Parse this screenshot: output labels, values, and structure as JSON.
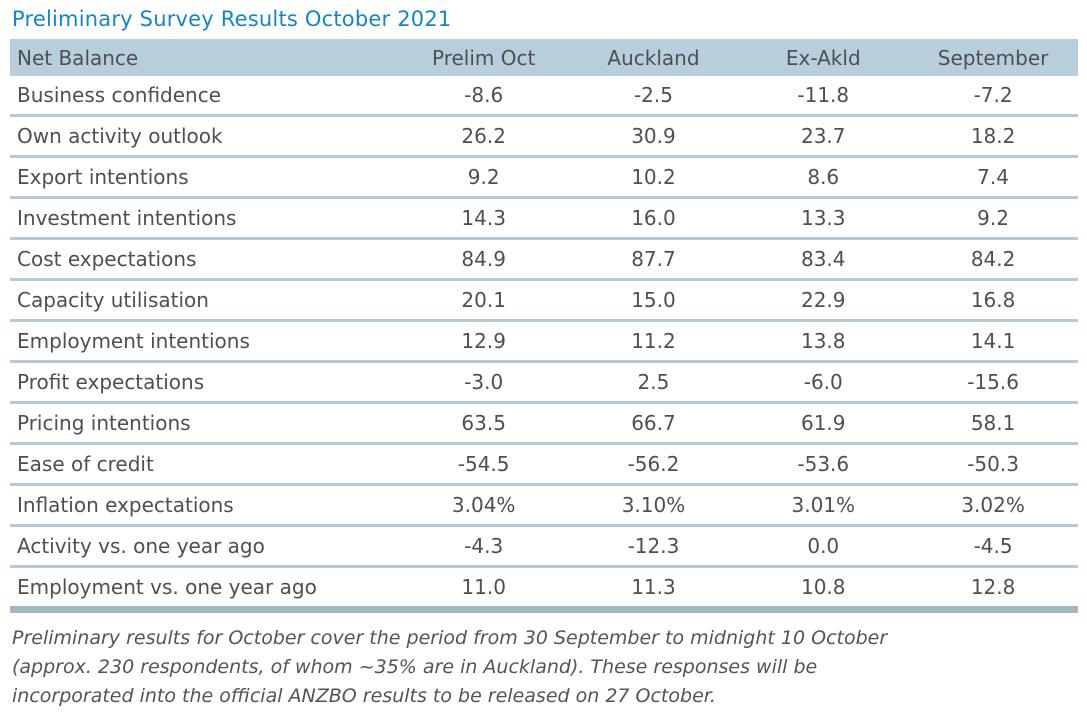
{
  "chart_data": {
    "type": "table",
    "title": "Preliminary Survey Results October 2021",
    "columns": [
      "Net Balance",
      "Prelim Oct",
      "Auckland",
      "Ex-Akld",
      "September"
    ],
    "rows": [
      [
        "Business confidence",
        "-8.6",
        "-2.5",
        "-11.8",
        "-7.2"
      ],
      [
        "Own activity outlook",
        "26.2",
        "30.9",
        "23.7",
        "18.2"
      ],
      [
        "Export intentions",
        "9.2",
        "10.2",
        "8.6",
        "7.4"
      ],
      [
        "Investment intentions",
        "14.3",
        "16.0",
        "13.3",
        "9.2"
      ],
      [
        "Cost expectations",
        "84.9",
        "87.7",
        "83.4",
        "84.2"
      ],
      [
        "Capacity utilisation",
        "20.1",
        "15.0",
        "22.9",
        "16.8"
      ],
      [
        "Employment intentions",
        "12.9",
        "11.2",
        "13.8",
        "14.1"
      ],
      [
        "Profit expectations",
        "-3.0",
        "2.5",
        "-6.0",
        "-15.6"
      ],
      [
        "Pricing intentions",
        "63.5",
        "66.7",
        "61.9",
        "58.1"
      ],
      [
        "Ease of credit",
        "-54.5",
        "-56.2",
        "-53.6",
        "-50.3"
      ],
      [
        "Inflation expectations",
        "3.04%",
        "3.10%",
        "3.01%",
        "3.02%"
      ],
      [
        "Activity vs. one year ago",
        "-4.3",
        "-12.3",
        "0.0",
        "-4.5"
      ],
      [
        "Employment vs. one year ago",
        "11.0",
        "11.3",
        "10.8",
        "12.8"
      ]
    ],
    "footnote_lines": [
      "Preliminary results for October cover the period from 30 September to midnight 10 October",
      "(approx. 230 respondents, of whom ~35% are in Auckland). These responses will be",
      "incorporated into the official ANZBO results to be released on 27 October."
    ]
  },
  "colors": {
    "title_text": "#1286c8",
    "header_background": "#b7cfdd",
    "row_divider": "#b5cad5",
    "table_end_bar": "#a1b7c4",
    "body_text": "#4f4f4f",
    "footnote_text": "#545454"
  }
}
